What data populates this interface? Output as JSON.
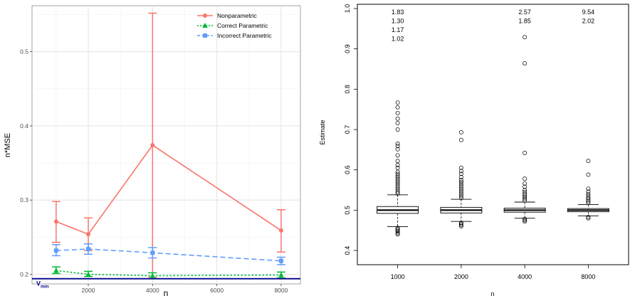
{
  "chart_data": [
    {
      "type": "line",
      "xlabel": "n",
      "ylabel": "n*MSE",
      "xlim": [
        250,
        8600
      ],
      "ylim": [
        0.187,
        0.562
      ],
      "xticks": [
        2000,
        4000,
        6000,
        8000
      ],
      "yticks": [
        0.2,
        0.3,
        0.4,
        0.5
      ],
      "tick_labels_x": [
        "2000",
        "4000",
        "6000",
        "8000"
      ],
      "tick_labels_y": [
        "0.2",
        "0.3",
        "0.4",
        "0.5"
      ],
      "grid": true,
      "legend_position": "top-right",
      "x": [
        1000,
        2000,
        4000,
        8000
      ],
      "series": [
        {
          "name": "Nonparametric",
          "color": "#F8766D",
          "marker": "circle",
          "line": "solid",
          "values": [
            0.271,
            0.254,
            0.374,
            0.259
          ],
          "err_low": [
            0.243,
            0.232,
            0.196,
            0.23
          ],
          "err_high": [
            0.298,
            0.276,
            0.552,
            0.287
          ]
        },
        {
          "name": "Correct Parametric",
          "color": "#00BA38",
          "marker": "triangle",
          "line": "dotted",
          "values": [
            0.205,
            0.2,
            0.198,
            0.199
          ],
          "err_low": [
            0.201,
            0.197,
            0.194,
            0.195
          ],
          "err_high": [
            0.21,
            0.204,
            0.202,
            0.203
          ]
        },
        {
          "name": "Incorrect Parametric",
          "color": "#619CFF",
          "marker": "square",
          "line": "dashed",
          "values": [
            0.232,
            0.234,
            0.229,
            0.218
          ],
          "err_low": [
            0.225,
            0.227,
            0.222,
            0.213
          ],
          "err_high": [
            0.24,
            0.241,
            0.236,
            0.223
          ]
        }
      ],
      "reference_line": {
        "y": 0.194,
        "label": "V",
        "label_sub": "min",
        "color": "#00008B"
      }
    },
    {
      "type": "box",
      "xlabel": "n",
      "ylabel": "Estimate",
      "ylim": [
        0.4,
        1.0
      ],
      "yticks": [
        0.4,
        0.5,
        0.6,
        0.7,
        0.8,
        0.9,
        1.0
      ],
      "tick_labels_y": [
        "0.4",
        "0.5",
        "0.6",
        "0.7",
        "0.8",
        "0.9",
        "1.0"
      ],
      "categories": [
        "1000",
        "2000",
        "4000",
        "8000"
      ],
      "boxes": [
        {
          "q1": 0.492,
          "median": 0.5,
          "q3": 0.509,
          "whisker_low": 0.459,
          "whisker_high": 0.538,
          "outliers": [
            0.44,
            0.443,
            0.447,
            0.45,
            0.453,
            0.456,
            0.541,
            0.545,
            0.55,
            0.555,
            0.56,
            0.565,
            0.57,
            0.575,
            0.58,
            0.585,
            0.59,
            0.595,
            0.605,
            0.612,
            0.622,
            0.636,
            0.651,
            0.659,
            0.665,
            0.7,
            0.716,
            0.727,
            0.741,
            0.755,
            0.767
          ],
          "off_scale_values": [
            "1.83",
            "1.30",
            "1.17",
            "1.02"
          ]
        },
        {
          "q1": 0.493,
          "median": 0.5,
          "q3": 0.507,
          "whisker_low": 0.472,
          "whisker_high": 0.527,
          "outliers": [
            0.46,
            0.463,
            0.466,
            0.469,
            0.53,
            0.535,
            0.54,
            0.545,
            0.55,
            0.555,
            0.56,
            0.565,
            0.57,
            0.575,
            0.582,
            0.59,
            0.597,
            0.605,
            0.674,
            0.693
          ],
          "off_scale_values": []
        },
        {
          "q1": 0.495,
          "median": 0.5,
          "q3": 0.505,
          "whisker_low": 0.48,
          "whisker_high": 0.52,
          "outliers": [
            0.472,
            0.475,
            0.478,
            0.524,
            0.528,
            0.532,
            0.536,
            0.54,
            0.545,
            0.55,
            0.558,
            0.566,
            0.578,
            0.642,
            0.864,
            0.929
          ],
          "off_scale_values": [
            "2.57",
            "1.85"
          ]
        },
        {
          "q1": 0.496,
          "median": 0.5,
          "q3": 0.504,
          "whisker_low": 0.486,
          "whisker_high": 0.514,
          "outliers": [
            0.48,
            0.483,
            0.518,
            0.522,
            0.526,
            0.53,
            0.535,
            0.54,
            0.546,
            0.553,
            0.588,
            0.622
          ],
          "off_scale_values": [
            "9.54",
            "2.02"
          ]
        }
      ]
    }
  ]
}
